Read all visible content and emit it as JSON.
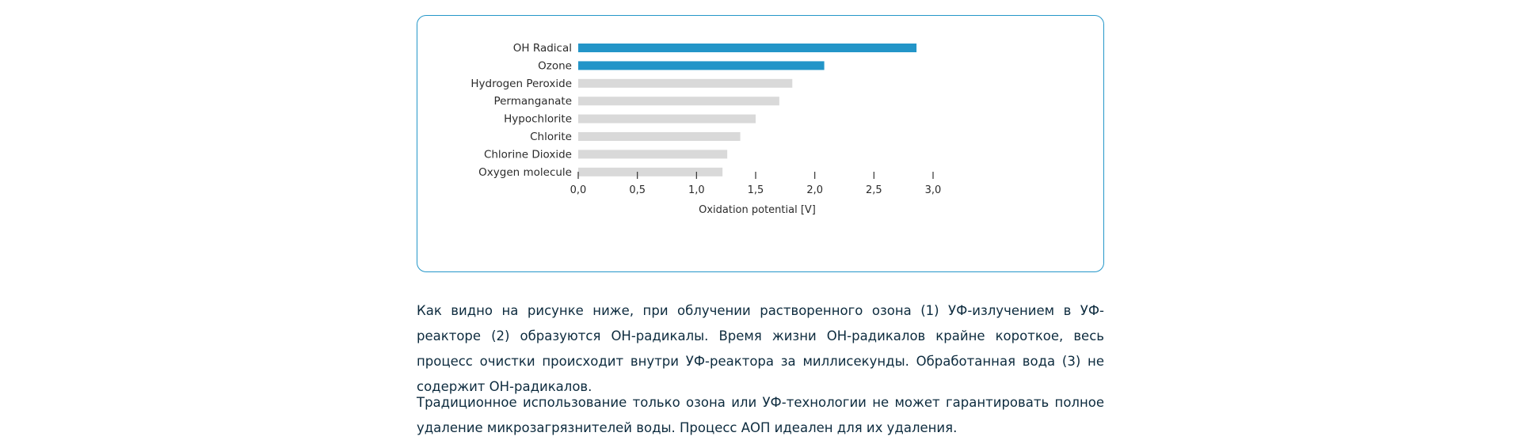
{
  "chart_data": {
    "type": "bar",
    "orientation": "horizontal",
    "categories": [
      "OH Radical",
      "Ozone",
      "Hydrogen Peroxide",
      "Permanganate",
      "Hypochlorite",
      "Chlorite",
      "Chlorine Dioxide",
      "Oxygen molecule"
    ],
    "values": [
      2.86,
      2.08,
      1.81,
      1.7,
      1.5,
      1.37,
      1.26,
      1.22
    ],
    "highlighted": [
      true,
      true,
      false,
      false,
      false,
      false,
      false,
      false
    ],
    "xlabel": "Oxidation potential [V]",
    "ylabel": "",
    "xlim": [
      0,
      3.0
    ],
    "ticks": [
      0,
      0.5,
      1.0,
      1.5,
      2.0,
      2.5,
      3.0
    ],
    "tick_labels": [
      "0,0",
      "0,5",
      "1,0",
      "1,5",
      "2,0",
      "2,5",
      "3,0"
    ],
    "grid": false,
    "colors": {
      "highlight": "#2395c8",
      "default": "#d9d9d9",
      "border": "#2597c9"
    }
  },
  "article": {
    "paragraph1": "Как видно на рисунке ниже, при облучении растворенного озона (1) УФ-излучением в УФ-реакторе (2) образуются ОН-радикалы. Время жизни ОН-радикалов крайне короткое, весь процесс очистки происходит внутри УФ-реактора за миллисекунды. Обработанная вода (3) не содержит ОН-радикалов.",
    "paragraph2": "Традиционное использование только озона или УФ-технологии не может гарантировать полное удаление микрозагрязнителей воды. Процесс АОП идеален для их удаления."
  }
}
